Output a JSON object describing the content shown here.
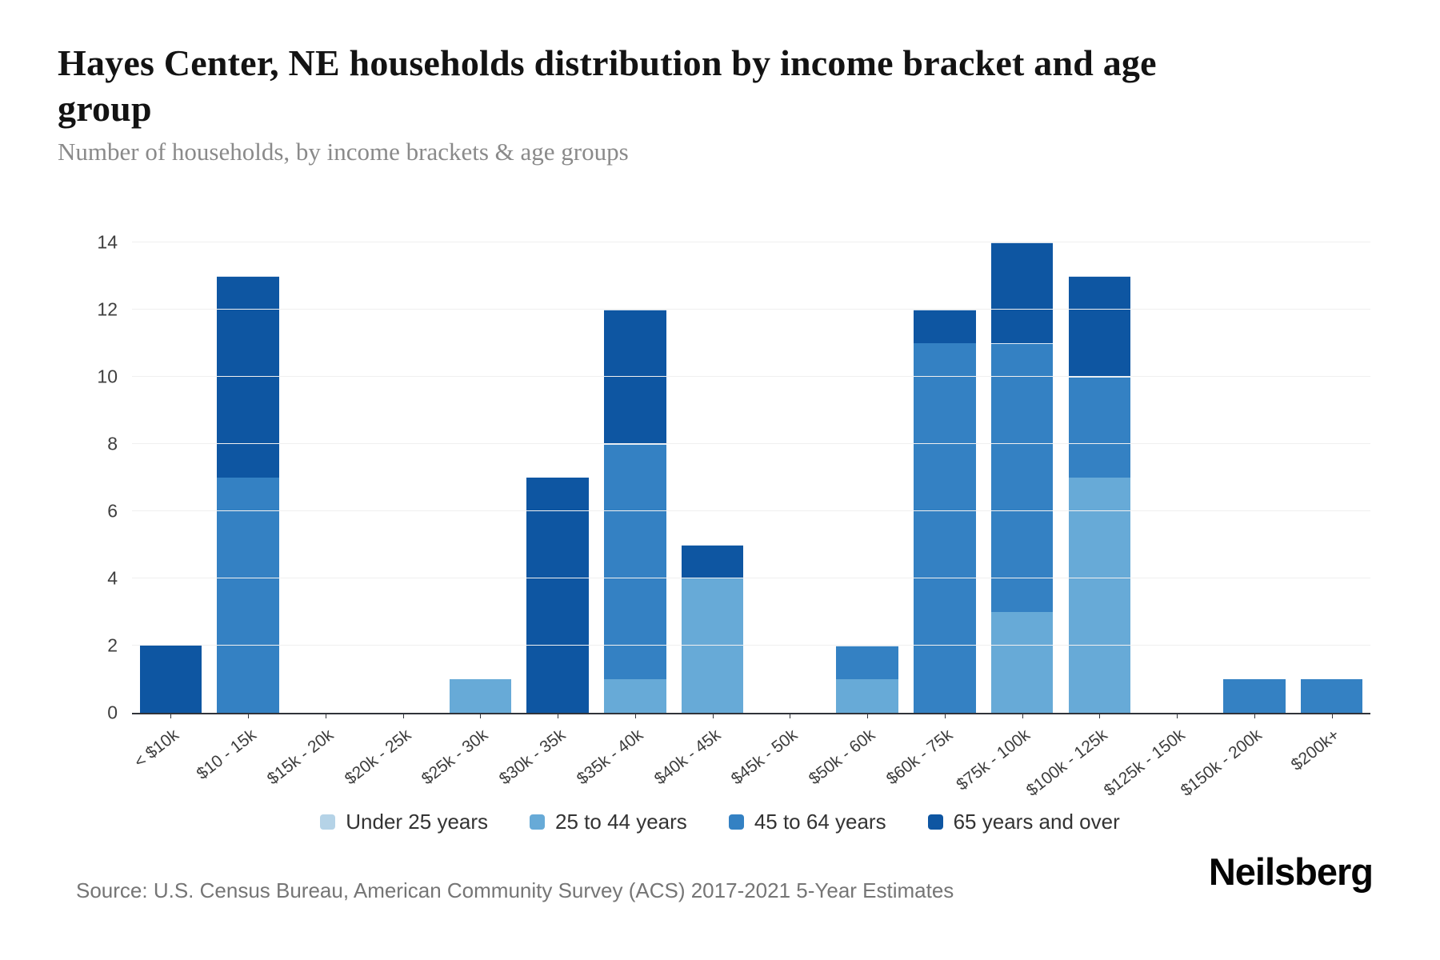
{
  "header": {
    "title": "Hayes Center, NE households distribution by income bracket and age group",
    "subtitle": "Number of households, by income brackets & age groups"
  },
  "chart_data": {
    "type": "bar",
    "stacked": true,
    "title": "Hayes Center, NE households distribution by income bracket and age group",
    "xlabel": "",
    "ylabel": "Number of households",
    "categories": [
      "< $10k",
      "$10 - 15k",
      "$15k - 20k",
      "$20k - 25k",
      "$25k - 30k",
      "$30k - 35k",
      "$35k - 40k",
      "$40k - 45k",
      "$45k - 50k",
      "$50k - 60k",
      "$60k - 75k",
      "$75k - 100k",
      "$100k - 125k",
      "$125k - 150k",
      "$150k - 200k",
      "$200k+"
    ],
    "series": [
      {
        "name": "Under 25 years",
        "color": "#b5d3e7",
        "values": [
          0,
          0,
          0,
          0,
          0,
          0,
          0,
          0,
          0,
          0,
          0,
          0,
          0,
          0,
          0,
          0
        ]
      },
      {
        "name": "25 to 44 years",
        "color": "#67aad7",
        "values": [
          0,
          0,
          0,
          0,
          1,
          0,
          1,
          4,
          0,
          1,
          0,
          3,
          7,
          0,
          0,
          0
        ]
      },
      {
        "name": "45 to 64 years",
        "color": "#3481c3",
        "values": [
          0,
          7,
          0,
          0,
          0,
          0,
          7,
          0,
          0,
          1,
          11,
          8,
          3,
          0,
          1,
          1
        ]
      },
      {
        "name": "65 years and over",
        "color": "#0e56a2",
        "values": [
          2,
          6,
          0,
          0,
          0,
          7,
          4,
          1,
          0,
          0,
          1,
          3,
          3,
          0,
          0,
          0
        ]
      }
    ],
    "totals": [
      2,
      13,
      0,
      0,
      1,
      7,
      12,
      5,
      0,
      2,
      12,
      14,
      13,
      0,
      1,
      1
    ],
    "ylim": [
      0,
      14
    ],
    "yticks": [
      0,
      2,
      4,
      6,
      8,
      10,
      12,
      14
    ],
    "grid": true,
    "legend_position": "bottom",
    "axis_color": "#30333a",
    "gridline_color": "#f0f0f0"
  },
  "footer": {
    "source": "Source: U.S. Census Bureau, American Community Survey (ACS) 2017-2021 5-Year Estimates",
    "logo": "Neilsberg"
  }
}
